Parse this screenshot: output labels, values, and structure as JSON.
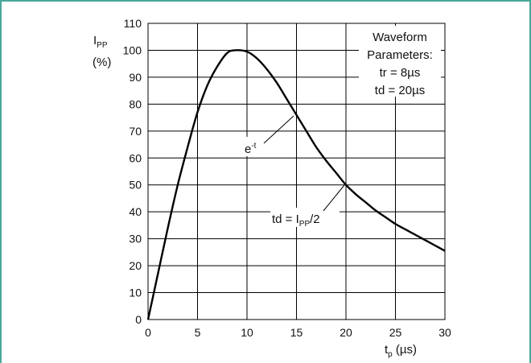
{
  "chart_data": {
    "type": "line",
    "title": "",
    "xlabel": {
      "main": "t",
      "sub": "p",
      "unit": " (µs)"
    },
    "ylabel": {
      "main": "I",
      "sub": "PP",
      "unit": "(%)"
    },
    "xlim": [
      0,
      30
    ],
    "ylim": [
      0,
      110
    ],
    "x_ticks": [
      "0",
      "5",
      "10",
      "15",
      "20",
      "25",
      "30"
    ],
    "y_ticks": [
      "0",
      "10",
      "20",
      "30",
      "40",
      "50",
      "60",
      "70",
      "80",
      "90",
      "100",
      "110"
    ],
    "grid": true,
    "series": [
      {
        "x": [
          0,
          1,
          2,
          3,
          4,
          5,
          6,
          7,
          8,
          8.8,
          10,
          11,
          12,
          13,
          14,
          15,
          16,
          17,
          18,
          19,
          20,
          21,
          22,
          23,
          24,
          25,
          26,
          27,
          28,
          29,
          30
        ],
        "y": [
          0,
          17,
          34,
          50,
          64,
          77,
          87,
          94,
          99,
          100,
          99.5,
          97,
          93,
          88,
          82,
          76,
          70,
          64,
          59,
          54.5,
          50,
          46.5,
          43.5,
          40.5,
          38,
          35.5,
          33.5,
          31.5,
          29.5,
          27.5,
          25.5
        ]
      }
    ],
    "annotations": {
      "waveform_box": [
        "Waveform",
        "Parameters:",
        "tr = 8µs",
        "td = 20µs"
      ],
      "decay": {
        "base": "e",
        "exp": "-t"
      },
      "td": {
        "prefix": "td = I",
        "sub": "PP",
        "suffix": "/2"
      }
    }
  }
}
